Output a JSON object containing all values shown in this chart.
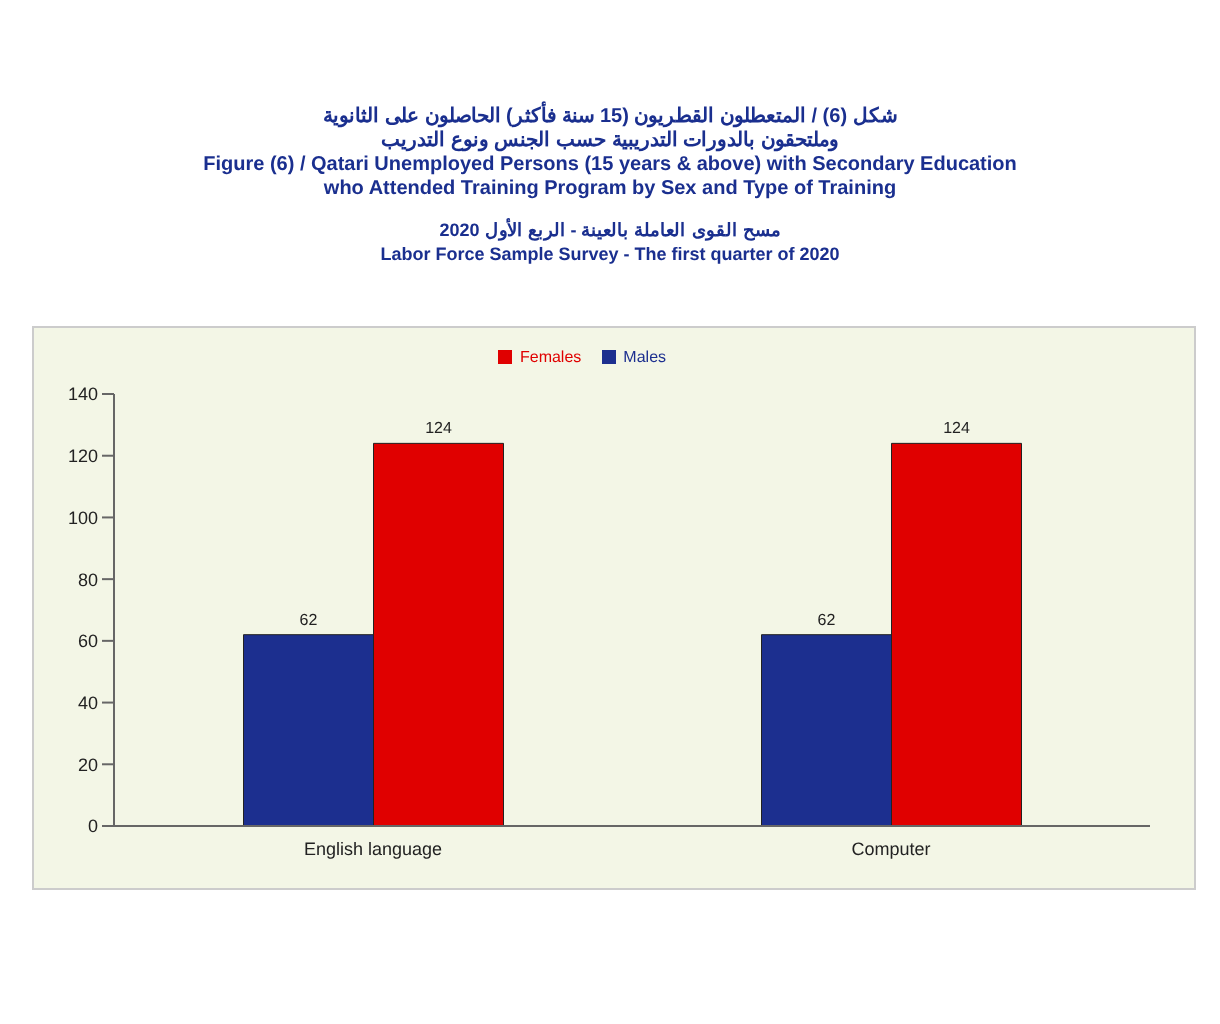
{
  "chart_data": {
    "type": "bar",
    "title": "شكل (6) / المتعطلون القطريون (15 سنة فأكثر) الحاصلون على الثانوية\nوملتحقون بالدورات التدريبية حسب الجنس ونوع التدريب",
    "subtitle": "Figure (6) / Qatari Unemployed Persons (15 years & above) with Secondary Education\nwho Attended Training Program by Sex and Type of Training",
    "annotations": [
      "مسح القوى العاملة بالعينة - الربع الأول 2020",
      "Labor Force Sample Survey - The first quarter of 2020"
    ],
    "categories": [
      "English language",
      "Computer"
    ],
    "series": [
      {
        "name": "Males",
        "color": "#1c2f8f",
        "values": [
          62,
          62
        ]
      },
      {
        "name": "Females",
        "color": "#e00000",
        "values": [
          124,
          124
        ]
      }
    ],
    "ylim": [
      0,
      140
    ],
    "yticks": [
      0,
      20,
      40,
      60,
      80,
      100,
      120,
      140
    ],
    "data_labels": true,
    "legend": "top",
    "grid": false
  }
}
